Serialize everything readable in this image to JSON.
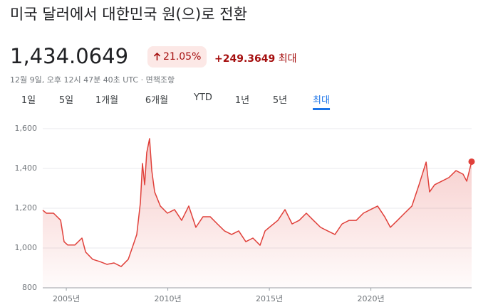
{
  "header": {
    "title": "미국 달러에서 대한민국 원(으)로 전환",
    "price": "1,434.0649",
    "change_pct": "21.05%",
    "change_abs": "+249.3649",
    "period": "최대",
    "timestamp": "12월 9일, 오후 12시 47분 40초 UTC · 면책조항"
  },
  "tabs": {
    "items": [
      "1일",
      "5일",
      "1개월",
      "6개월",
      "YTD",
      "1년",
      "5년",
      "최대"
    ],
    "active": 7
  },
  "chart_data": {
    "type": "line",
    "color": "#e0403a",
    "grid": true,
    "x": [
      2003.84,
      2004.02,
      2004.37,
      2004.72,
      2004.89,
      2005.07,
      2005.42,
      2005.77,
      2005.95,
      2006.3,
      2006.65,
      2007.0,
      2007.35,
      2007.7,
      2008.05,
      2008.23,
      2008.47,
      2008.65,
      2008.75,
      2008.86,
      2008.96,
      2009.1,
      2009.21,
      2009.35,
      2009.63,
      2009.98,
      2010.33,
      2010.68,
      2011.03,
      2011.38,
      2011.73,
      2012.09,
      2012.44,
      2012.79,
      2013.14,
      2013.49,
      2013.84,
      2014.19,
      2014.54,
      2014.79,
      2015.0,
      2015.42,
      2015.77,
      2016.12,
      2016.47,
      2016.82,
      2017.17,
      2017.52,
      2017.87,
      2018.23,
      2018.58,
      2018.93,
      2019.28,
      2019.63,
      2019.98,
      2020.33,
      2020.68,
      2020.96,
      2021.31,
      2021.66,
      2022.02,
      2022.37,
      2022.72,
      2022.89,
      2023.14,
      2023.49,
      2023.84,
      2024.19,
      2024.54,
      2024.72,
      2024.96
    ],
    "values": [
      1190,
      1175,
      1175,
      1140,
      1032,
      1015,
      1015,
      1050,
      980,
      943,
      932,
      918,
      925,
      907,
      943,
      996,
      1068,
      1229,
      1425,
      1318,
      1479,
      1550,
      1389,
      1282,
      1211,
      1175,
      1193,
      1139,
      1211,
      1104,
      1157,
      1157,
      1121,
      1086,
      1068,
      1086,
      1032,
      1050,
      1014,
      1086,
      1104,
      1139,
      1193,
      1121,
      1139,
      1175,
      1139,
      1104,
      1086,
      1068,
      1121,
      1139,
      1139,
      1175,
      1193,
      1211,
      1157,
      1104,
      1139,
      1175,
      1211,
      1318,
      1432,
      1282,
      1318,
      1336,
      1354,
      1389,
      1371,
      1336,
      1434.0649
    ],
    "xlim": [
      2003.84,
      2024.96
    ],
    "ylim": [
      800,
      1600
    ],
    "xticks": [
      {
        "value": 2005,
        "label": "2005년"
      },
      {
        "value": 2010,
        "label": "2010년"
      },
      {
        "value": 2015,
        "label": "2015년"
      },
      {
        "value": 2020,
        "label": "2020년"
      }
    ],
    "yticks": [
      800,
      {
        "value": 1000,
        "label": "1,000"
      },
      {
        "value": 1200,
        "label": "1,200"
      },
      {
        "value": 1400,
        "label": "1,400"
      },
      {
        "value": 1600,
        "label": "1,600"
      }
    ]
  }
}
